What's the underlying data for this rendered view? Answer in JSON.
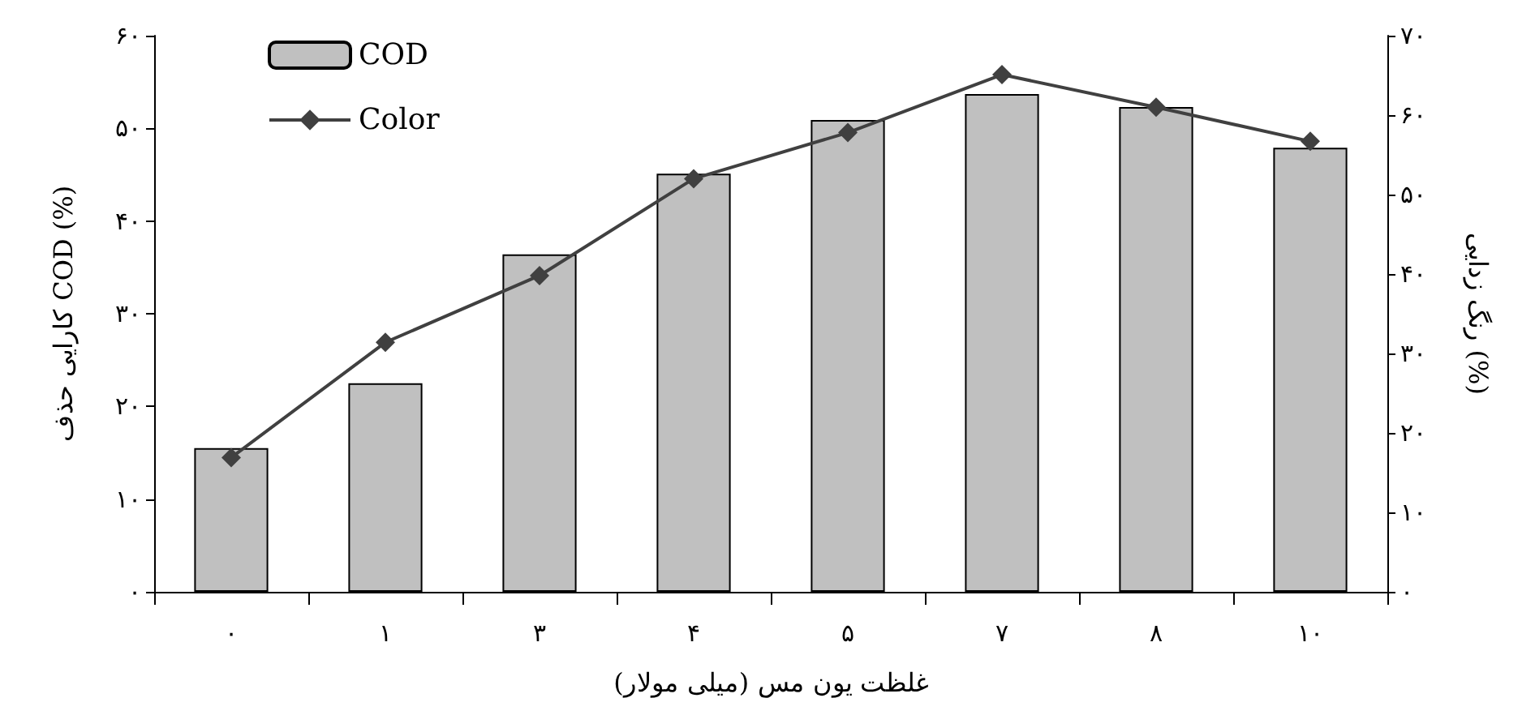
{
  "chart_data": {
    "type": "bar",
    "xlabel": "غلظت یون مس (میلی مولار)",
    "ylabel": "کارایی حذف COD (%)",
    "y2label": "رنگ زدایی (%)",
    "categories": [
      "۰",
      "۱",
      "۳",
      "۴",
      "۵",
      "۷",
      "۸",
      "۱۰"
    ],
    "series": [
      {
        "name": "COD",
        "color": "#c0c0c0",
        "values": [
          15.5,
          22.5,
          36.4,
          45.1,
          50.9,
          53.7,
          52.3,
          47.9
        ]
      },
      {
        "name": "Color",
        "type": "line",
        "axis": "y2",
        "color": "#404040",
        "marker": "diamond",
        "line_style": "solid",
        "values": [
          16.9,
          31.4,
          39.8,
          52.0,
          57.8,
          65.1,
          61.0,
          56.7
        ]
      }
    ],
    "ylim": [
      0,
      60
    ],
    "yticks": [
      {
        "value": 0,
        "label": "۰"
      },
      {
        "value": 10,
        "label": "۱۰"
      },
      {
        "value": 20,
        "label": "۲۰"
      },
      {
        "value": 30,
        "label": "۳۰"
      },
      {
        "value": 40,
        "label": "۴۰"
      },
      {
        "value": 50,
        "label": "۵۰"
      },
      {
        "value": 60,
        "label": "۶۰"
      }
    ],
    "y2lim": [
      0,
      70
    ],
    "y2ticks": [
      {
        "value": 0,
        "label": "۰"
      },
      {
        "value": 10,
        "label": "۱۰"
      },
      {
        "value": 20,
        "label": "۲۰"
      },
      {
        "value": 30,
        "label": "۳۰"
      },
      {
        "value": 40,
        "label": "۴۰"
      },
      {
        "value": 50,
        "label": "۵۰"
      },
      {
        "value": 60,
        "label": "۶۰"
      },
      {
        "value": 70,
        "label": "۷۰"
      }
    ],
    "grid": false,
    "legend": "top left"
  }
}
